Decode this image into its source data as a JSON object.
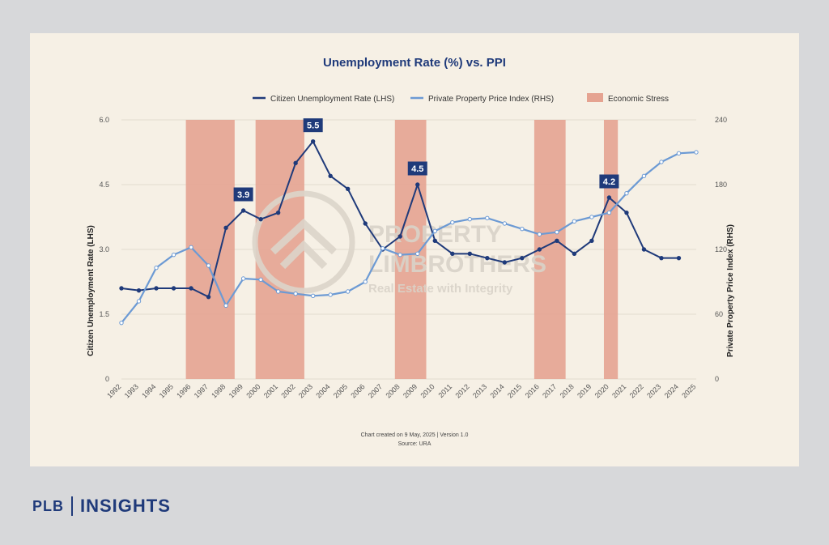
{
  "brand": {
    "left": "PLB",
    "right": "INSIGHTS"
  },
  "chart_data": {
    "type": "line",
    "title": "Unemployment Rate (%) vs. PPI",
    "x": [
      "1992",
      "1993",
      "1994",
      "1995",
      "1996",
      "1997",
      "1998",
      "1999",
      "2000",
      "2001",
      "2002",
      "2003",
      "2004",
      "2005",
      "2006",
      "2007",
      "2008",
      "2009",
      "2010",
      "2011",
      "2012",
      "2013",
      "2014",
      "2015",
      "2016",
      "2017",
      "2018",
      "2019",
      "2020",
      "2021",
      "2022",
      "2023",
      "2024",
      "2025"
    ],
    "ylabel_left": "Citizen Unemployment Rate (LHS)",
    "ylabel_right": "Private Property Price Index (RHS)",
    "ylim_left": [
      0,
      6.0
    ],
    "ylim_right": [
      0,
      240
    ],
    "yticks_left": [
      "0",
      "1.5",
      "3.0",
      "4.5",
      "6.0"
    ],
    "yticks_right": [
      "0",
      "60",
      "120",
      "180",
      "240"
    ],
    "grid": true,
    "legend_position": "top-center",
    "series": [
      {
        "name": "Citizen Unemployment Rate (LHS)",
        "axis": "left",
        "color": "#1f3a7a",
        "values": [
          2.1,
          2.05,
          2.1,
          2.1,
          2.1,
          1.9,
          3.5,
          3.9,
          3.7,
          3.85,
          5.0,
          5.5,
          4.7,
          4.4,
          3.6,
          3.0,
          3.3,
          4.5,
          3.2,
          2.9,
          2.9,
          2.8,
          2.7,
          2.8,
          3.0,
          3.2,
          2.9,
          3.2,
          4.2,
          3.85,
          3.0,
          2.8,
          2.8,
          null
        ]
      },
      {
        "name": "Private Property Price Index (RHS)",
        "axis": "right",
        "color": "#6c9ad4",
        "values": [
          52,
          72,
          103,
          115,
          122,
          105,
          68,
          93,
          92,
          81,
          79,
          77,
          78,
          81,
          90,
          121,
          115,
          116,
          137,
          145,
          148,
          149,
          144,
          139,
          134,
          136,
          146,
          150,
          154,
          172,
          188,
          201,
          209,
          210
        ]
      }
    ],
    "shaded_regions": {
      "name": "Economic Stress",
      "color": "#e5a391",
      "spans": [
        [
          "1996",
          "1998"
        ],
        [
          "2000",
          "2002"
        ],
        [
          "2008",
          "2009"
        ],
        [
          "2016",
          "2017"
        ],
        [
          "2020",
          "2020"
        ]
      ]
    },
    "annotations": [
      {
        "x": "1999",
        "text": "3.9"
      },
      {
        "x": "2003",
        "text": "5.5"
      },
      {
        "x": "2009",
        "text": "4.5"
      },
      {
        "x": "2020",
        "text": "4.2"
      }
    ],
    "watermark": {
      "line1": "PROPERTY",
      "line2": "LIMBROTHERS",
      "line3": "Real Estate with Integrity"
    },
    "footer": {
      "line1": "Chart created on 9 May, 2025 | Version 1.0",
      "line2": "Source: URA"
    }
  }
}
